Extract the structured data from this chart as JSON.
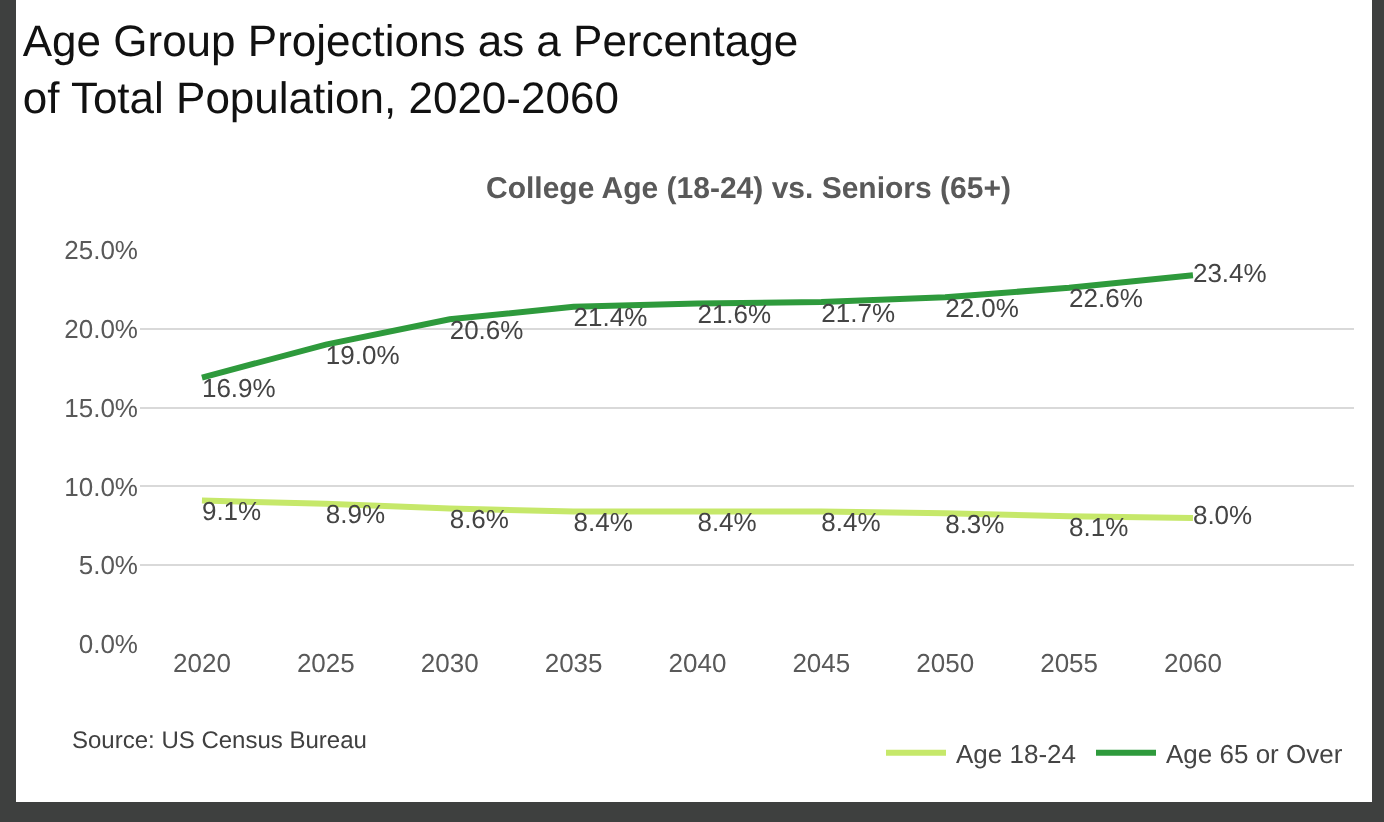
{
  "chart_data": {
    "type": "line",
    "title": "Age Group Projections as a Percentage\nof Total Population, 2020-2060",
    "subtitle": "College Age (18-24) vs. Seniors (65+)",
    "x": [
      2020,
      2025,
      2030,
      2035,
      2040,
      2045,
      2050,
      2055,
      2060
    ],
    "series": [
      {
        "name": "Age 18-24",
        "color": "#c6e86a",
        "values": [
          9.1,
          8.9,
          8.6,
          8.4,
          8.4,
          8.4,
          8.3,
          8.1,
          8.0
        ],
        "value_labels": [
          "9.1%",
          "8.9%",
          "8.6%",
          "8.4%",
          "8.4%",
          "8.4%",
          "8.3%",
          "8.1%",
          "8.0%"
        ]
      },
      {
        "name": "Age 65 or Over",
        "color": "#2e9a3c",
        "values": [
          16.9,
          19.0,
          20.6,
          21.4,
          21.6,
          21.7,
          22.0,
          22.6,
          23.4
        ],
        "value_labels": [
          "16.9%",
          "19.0%",
          "20.6%",
          "21.4%",
          "21.6%",
          "21.7%",
          "22.0%",
          "22.6%",
          "23.4%"
        ]
      }
    ],
    "xlim": [
      2017.5,
      2066.5
    ],
    "xticks": [
      2020,
      2025,
      2030,
      2035,
      2040,
      2045,
      2050,
      2055,
      2060
    ],
    "ylim": [
      0,
      25
    ],
    "yticks": [
      {
        "value": 0,
        "label": "0.0%"
      },
      {
        "value": 5,
        "label": "5.0%"
      },
      {
        "value": 10,
        "label": "10.0%"
      },
      {
        "value": 15,
        "label": "15.0%"
      },
      {
        "value": 20,
        "label": "20.0%"
      },
      {
        "value": 25,
        "label": "25.0%"
      }
    ],
    "grid": "y",
    "legend": "bottom right",
    "marker": "none",
    "line_style": "solid",
    "annotations": [
      "Source: US Census Bureau"
    ]
  }
}
